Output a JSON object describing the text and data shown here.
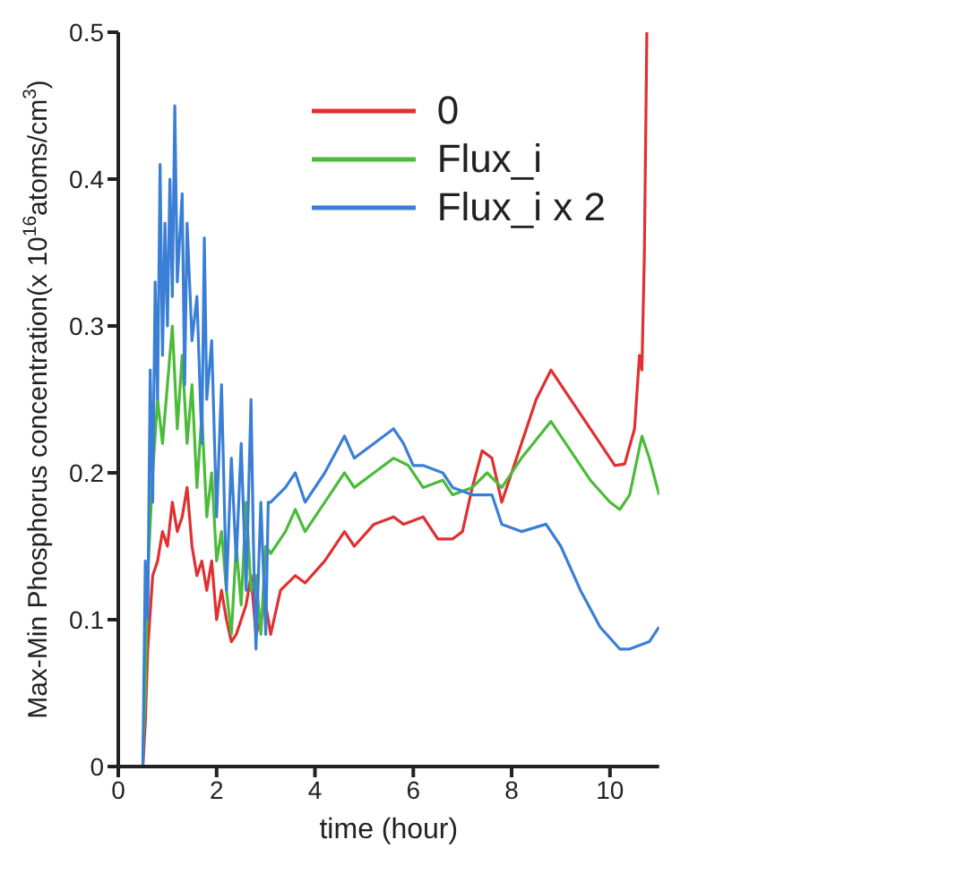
{
  "chart_data": {
    "type": "line",
    "xlabel": "time (hour)",
    "ylabel": "Max-Min Phosphorus concentration(x 10$^{16}$atoms/cm$^{3}$)",
    "xlim": [
      0,
      11
    ],
    "xticks": [
      0,
      2,
      4,
      6,
      8,
      10
    ],
    "ylim": [
      0,
      0.5
    ],
    "yticks": [
      0,
      0.1,
      0.2,
      0.3,
      0.4,
      0.5
    ],
    "grid": false,
    "legend": "top right",
    "marker": "none",
    "line_style": "solid",
    "series": [
      {
        "name": "0",
        "color": "#e03030",
        "x": [
          0.5,
          0.55,
          0.6,
          0.7,
          0.8,
          0.9,
          1.0,
          1.1,
          1.2,
          1.3,
          1.4,
          1.5,
          1.6,
          1.7,
          1.8,
          1.9,
          2.0,
          2.1,
          2.2,
          2.3,
          2.4,
          2.5,
          2.6,
          2.7,
          2.8,
          2.9,
          3.0,
          3.1,
          3.3,
          3.6,
          3.8,
          4.2,
          4.6,
          4.8,
          5.2,
          5.6,
          5.8,
          6.2,
          6.5,
          6.8,
          7.0,
          7.2,
          7.4,
          7.6,
          7.8,
          8.0,
          8.2,
          8.5,
          8.8,
          9.0,
          9.4,
          9.8,
          10.1,
          10.3,
          10.5,
          10.6,
          10.65,
          10.7,
          10.75
        ],
        "values": [
          0,
          0.03,
          0.08,
          0.13,
          0.14,
          0.16,
          0.15,
          0.18,
          0.16,
          0.17,
          0.19,
          0.15,
          0.13,
          0.14,
          0.12,
          0.14,
          0.1,
          0.12,
          0.1,
          0.085,
          0.09,
          0.1,
          0.11,
          0.13,
          0.09,
          0.1,
          0.11,
          0.09,
          0.12,
          0.13,
          0.125,
          0.14,
          0.16,
          0.15,
          0.165,
          0.17,
          0.165,
          0.17,
          0.155,
          0.155,
          0.16,
          0.19,
          0.215,
          0.21,
          0.18,
          0.2,
          0.22,
          0.25,
          0.27,
          0.26,
          0.24,
          0.22,
          0.205,
          0.206,
          0.23,
          0.28,
          0.27,
          0.35,
          0.5
        ]
      },
      {
        "name": "Flux_i",
        "color": "#4cbb3a",
        "x": [
          0.5,
          0.55,
          0.6,
          0.7,
          0.8,
          0.9,
          1.0,
          1.1,
          1.2,
          1.3,
          1.4,
          1.5,
          1.6,
          1.7,
          1.8,
          1.9,
          2.0,
          2.1,
          2.2,
          2.3,
          2.4,
          2.5,
          2.6,
          2.7,
          2.8,
          2.9,
          3.0,
          3.1,
          3.4,
          3.6,
          3.8,
          4.2,
          4.6,
          4.8,
          5.2,
          5.6,
          5.9,
          6.2,
          6.6,
          6.8,
          7.2,
          7.5,
          7.8,
          8.2,
          8.8,
          9.2,
          9.6,
          10.0,
          10.2,
          10.4,
          10.65,
          10.8,
          11.0
        ],
        "values": [
          0.01,
          0.05,
          0.13,
          0.2,
          0.25,
          0.22,
          0.26,
          0.3,
          0.23,
          0.28,
          0.22,
          0.26,
          0.19,
          0.24,
          0.17,
          0.2,
          0.14,
          0.16,
          0.12,
          0.09,
          0.15,
          0.11,
          0.18,
          0.12,
          0.13,
          0.09,
          0.15,
          0.145,
          0.16,
          0.175,
          0.16,
          0.18,
          0.2,
          0.19,
          0.2,
          0.21,
          0.205,
          0.19,
          0.195,
          0.185,
          0.19,
          0.2,
          0.19,
          0.21,
          0.235,
          0.215,
          0.195,
          0.18,
          0.175,
          0.185,
          0.225,
          0.21,
          0.185
        ]
      },
      {
        "name": "Flux_i x 2",
        "color": "#3a7fd5",
        "x": [
          0.5,
          0.55,
          0.6,
          0.65,
          0.7,
          0.75,
          0.8,
          0.85,
          0.9,
          0.95,
          1.0,
          1.05,
          1.1,
          1.15,
          1.2,
          1.3,
          1.35,
          1.4,
          1.5,
          1.6,
          1.7,
          1.75,
          1.8,
          1.9,
          2.0,
          2.1,
          2.2,
          2.3,
          2.4,
          2.5,
          2.6,
          2.7,
          2.75,
          2.8,
          2.9,
          3.0,
          3.05,
          3.1,
          3.4,
          3.6,
          3.8,
          4.2,
          4.6,
          4.8,
          5.2,
          5.6,
          5.8,
          6.0,
          6.2,
          6.6,
          6.8,
          7.2,
          7.6,
          7.8,
          8.2,
          8.7,
          9.0,
          9.4,
          9.8,
          10.2,
          10.4,
          10.8,
          11.0
        ],
        "values": [
          0,
          0.14,
          0.1,
          0.27,
          0.18,
          0.33,
          0.25,
          0.41,
          0.28,
          0.37,
          0.3,
          0.4,
          0.32,
          0.45,
          0.33,
          0.39,
          0.26,
          0.37,
          0.29,
          0.32,
          0.22,
          0.36,
          0.25,
          0.29,
          0.17,
          0.26,
          0.12,
          0.21,
          0.14,
          0.22,
          0.12,
          0.25,
          0.15,
          0.08,
          0.18,
          0.09,
          0.18,
          0.18,
          0.19,
          0.2,
          0.18,
          0.2,
          0.225,
          0.21,
          0.22,
          0.23,
          0.22,
          0.205,
          0.205,
          0.2,
          0.19,
          0.185,
          0.185,
          0.165,
          0.16,
          0.165,
          0.15,
          0.12,
          0.095,
          0.08,
          0.08,
          0.085,
          0.095
        ]
      }
    ]
  }
}
